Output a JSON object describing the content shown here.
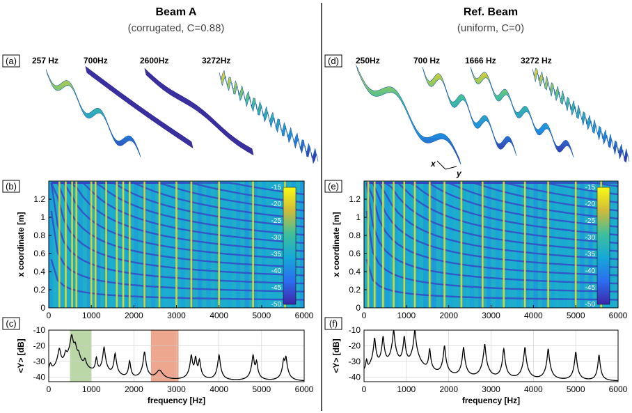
{
  "colors": {
    "divider": "#555555",
    "green_band": "#a6c98a",
    "red_band": "#e58a68",
    "line": "#000000"
  },
  "figure": {
    "left": {
      "title": "Beam A",
      "subtitle": "(corrugated, C=0.88)",
      "label_shapes": "(a)",
      "label_map": "(b)",
      "label_spectrum": "(c)",
      "mode_freqs": [
        "257 Hz",
        "700Hz",
        "2600Hz",
        "3272Hz"
      ]
    },
    "right": {
      "title": "Ref. Beam",
      "subtitle": "(uniform, C=0)",
      "label_shapes": "(d)",
      "label_map": "(e)",
      "label_spectrum": "(f)",
      "mode_freqs": [
        "250Hz",
        "700 Hz",
        "1666 Hz",
        "3272 Hz"
      ],
      "axis_x": "x",
      "axis_y": "y"
    },
    "map_ylabel": "x coordinate [m]",
    "spectrum_ylabel": "<Y> [dB]",
    "spectrum_xlabel": "frequency [Hz]"
  },
  "chart_data": [
    {
      "id": "map_left",
      "type": "heatmap",
      "title": "",
      "xlabel": "",
      "ylabel": "x coordinate [m]",
      "xlim": [
        0,
        6000
      ],
      "ylim": [
        0,
        1.4
      ],
      "xticks": [
        0,
        1000,
        2000,
        3000,
        4000,
        5000,
        6000
      ],
      "yticks": [
        0,
        0.2,
        0.4,
        0.6,
        0.8,
        1,
        1.2
      ],
      "colorbar": {
        "range": [
          -50,
          -15
        ],
        "ticks": [
          -15,
          -20,
          -25,
          -30,
          -35,
          -40,
          -45,
          -50
        ],
        "colormap": "parula"
      },
      "resonance_lines_hz": [
        250,
        400,
        550,
        650,
        1000,
        1100,
        1350,
        1600,
        1750,
        1900,
        2250,
        2600,
        3000,
        3350,
        4000,
        4800,
        5550
      ]
    },
    {
      "id": "map_right",
      "type": "heatmap",
      "title": "",
      "xlabel": "",
      "ylabel": "x coordinate [m]",
      "xlim": [
        0,
        6000
      ],
      "ylim": [
        0,
        1.4
      ],
      "xticks": [
        0,
        1000,
        2000,
        3000,
        4000,
        5000,
        6000
      ],
      "yticks": [
        0,
        0.2,
        0.4,
        0.6,
        0.8,
        1,
        1.2
      ],
      "colorbar": {
        "range": [
          -50,
          -15
        ],
        "ticks": [
          -15,
          -20,
          -25,
          -30,
          -35,
          -40,
          -45,
          -50
        ],
        "colormap": "parula"
      },
      "resonance_lines_hz": [
        100,
        250,
        450,
        700,
        950,
        1200,
        1550,
        1900,
        2300,
        2800,
        3300,
        3800,
        4350,
        5000,
        5600
      ]
    },
    {
      "id": "spectrum_left",
      "type": "line",
      "title": "",
      "xlabel": "frequency [Hz]",
      "ylabel": "<Y> [dB]",
      "xlim": [
        0,
        6000
      ],
      "ylim": [
        -43,
        -10
      ],
      "xticks": [
        0,
        1000,
        2000,
        3000,
        4000,
        5000,
        6000
      ],
      "yticks": [
        -10,
        -20,
        -30,
        -40
      ],
      "grid": true,
      "bands": [
        {
          "x": [
            500,
            1000
          ],
          "color": "green"
        },
        {
          "x": [
            2400,
            3050
          ],
          "color": "red"
        }
      ],
      "peaks": [
        {
          "x": 40,
          "y": -33,
          "w": 25
        },
        {
          "x": 250,
          "y": -22,
          "w": 25
        },
        {
          "x": 400,
          "y": -25,
          "w": 25
        },
        {
          "x": 540,
          "y": -13,
          "w": 25
        },
        {
          "x": 620,
          "y": -19,
          "w": 25
        },
        {
          "x": 700,
          "y": -26,
          "w": 25
        },
        {
          "x": 850,
          "y": -30,
          "w": 25
        },
        {
          "x": 1120,
          "y": -28,
          "w": 18
        },
        {
          "x": 1300,
          "y": -21,
          "w": 18
        },
        {
          "x": 1560,
          "y": -25,
          "w": 18
        },
        {
          "x": 1900,
          "y": -30,
          "w": 18
        },
        {
          "x": 2250,
          "y": -24,
          "w": 18
        },
        {
          "x": 2600,
          "y": -37,
          "w": 70
        },
        {
          "x": 3350,
          "y": -26,
          "w": 18
        },
        {
          "x": 3450,
          "y": -27,
          "w": 18
        },
        {
          "x": 3540,
          "y": -29,
          "w": 18
        },
        {
          "x": 4000,
          "y": -26,
          "w": 18
        },
        {
          "x": 4800,
          "y": -26,
          "w": 18
        },
        {
          "x": 4880,
          "y": -30,
          "w": 18
        },
        {
          "x": 5520,
          "y": -29,
          "w": 18
        },
        {
          "x": 5570,
          "y": -27,
          "w": 18
        }
      ],
      "baseline_db": -43
    },
    {
      "id": "spectrum_right",
      "type": "line",
      "title": "",
      "xlabel": "frequency [Hz]",
      "ylabel": "<Y> [dB]",
      "xlim": [
        0,
        6000
      ],
      "ylim": [
        -43,
        -10
      ],
      "xticks": [
        0,
        1000,
        2000,
        3000,
        4000,
        5000,
        6000
      ],
      "yticks": [
        -10,
        -20,
        -30,
        -40
      ],
      "grid": true,
      "bands": [],
      "peaks": [
        {
          "x": 60,
          "y": -30,
          "w": 15
        },
        {
          "x": 250,
          "y": -15,
          "w": 15
        },
        {
          "x": 450,
          "y": -14,
          "w": 15
        },
        {
          "x": 700,
          "y": -10,
          "w": 15
        },
        {
          "x": 950,
          "y": -14,
          "w": 15
        },
        {
          "x": 1200,
          "y": -10,
          "w": 15
        },
        {
          "x": 1550,
          "y": -22,
          "w": 15
        },
        {
          "x": 1900,
          "y": -20,
          "w": 15
        },
        {
          "x": 2350,
          "y": -21,
          "w": 15
        },
        {
          "x": 2850,
          "y": -19,
          "w": 15
        },
        {
          "x": 3300,
          "y": -22,
          "w": 15
        },
        {
          "x": 3800,
          "y": -21,
          "w": 15
        },
        {
          "x": 4350,
          "y": -22,
          "w": 15
        },
        {
          "x": 5000,
          "y": -24,
          "w": 15
        },
        {
          "x": 5550,
          "y": -26,
          "w": 15
        }
      ],
      "baseline_db": -43
    }
  ]
}
